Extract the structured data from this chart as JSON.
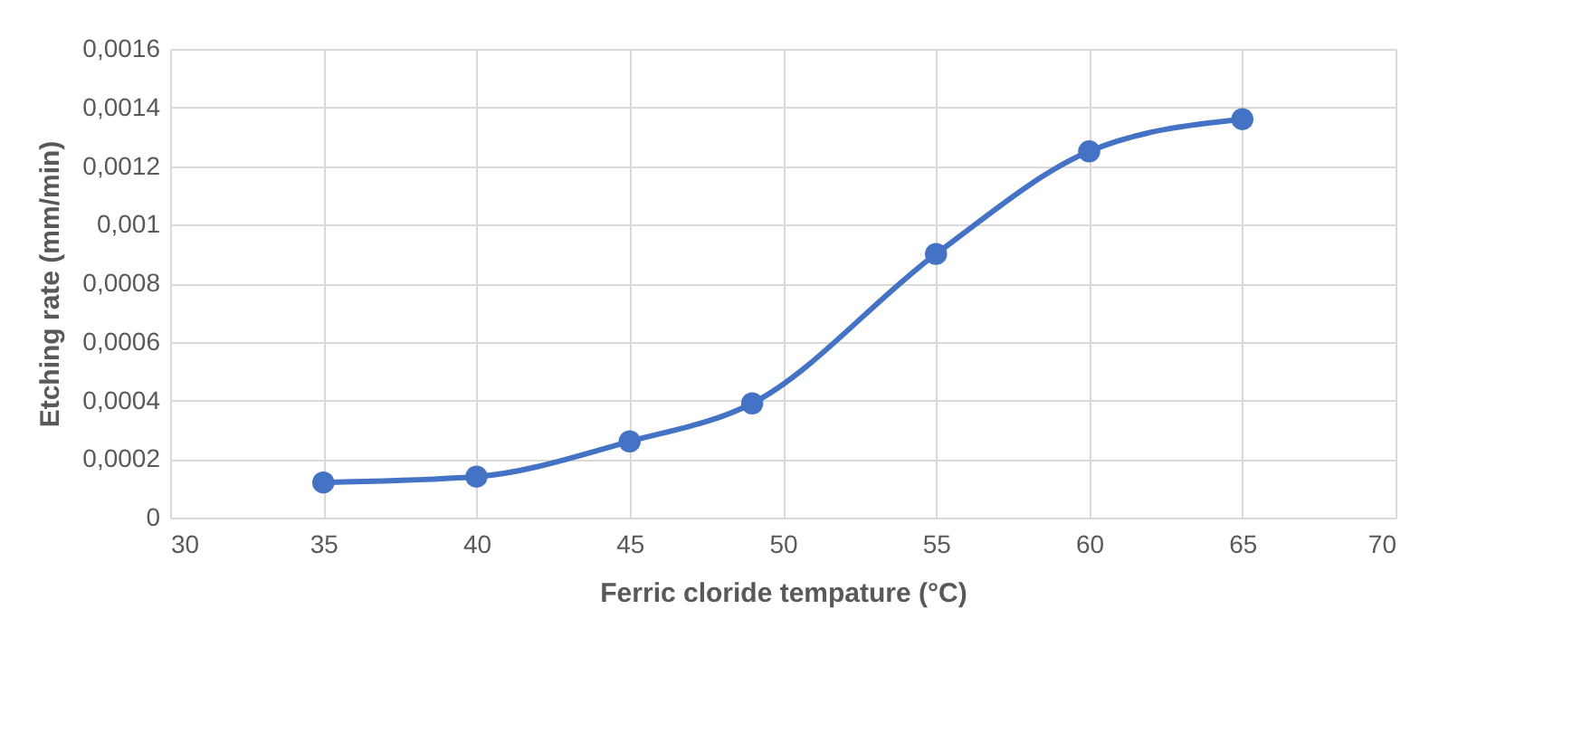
{
  "chart_data": {
    "type": "line",
    "xlabel": "Ferric cloride tempature (°C)",
    "ylabel": "Etching rate (mm/min)",
    "x": [
      35,
      40,
      45,
      49,
      55,
      60,
      65
    ],
    "series": [
      {
        "color": "#4472c4",
        "values": [
          0.00012,
          0.00014,
          0.00026,
          0.00039,
          0.0009,
          0.00125,
          0.00136
        ]
      }
    ],
    "xlim": [
      30,
      70
    ],
    "xticks": [
      30,
      35,
      40,
      45,
      50,
      55,
      60,
      65,
      70
    ],
    "ylim": [
      0,
      0.0016
    ],
    "yticks": [
      0,
      {
        "value": 0.0002,
        "label": "0,0002"
      },
      {
        "value": 0.0004,
        "label": "0,0004"
      },
      {
        "value": 0.0006,
        "label": "0,0006"
      },
      {
        "value": 0.0008,
        "label": "0,0008"
      },
      {
        "value": 0.001,
        "label": "0,001"
      },
      {
        "value": 0.0012,
        "label": "0,0012"
      },
      {
        "value": 0.0014,
        "label": "0,0014"
      },
      {
        "value": 0.0016,
        "label": "0,0016"
      }
    ],
    "grid": true,
    "marker": "circle",
    "line_style": "solid"
  }
}
